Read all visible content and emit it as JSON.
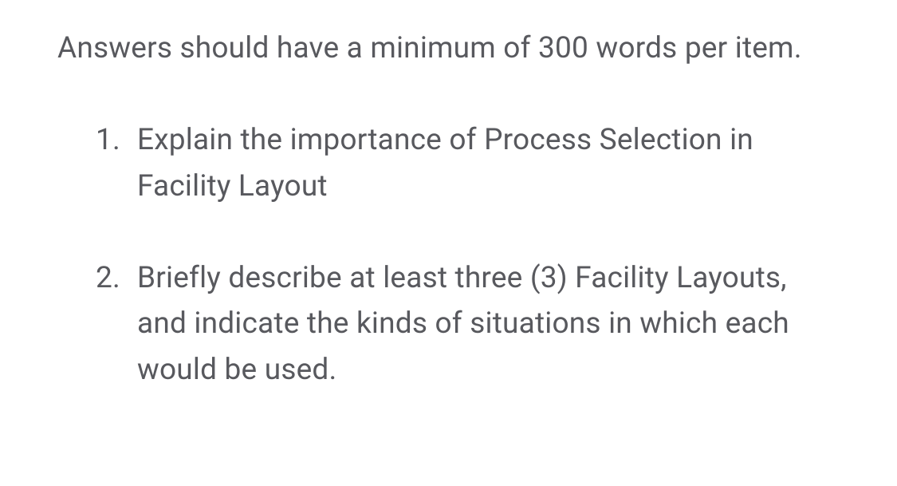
{
  "document": {
    "intro": "Answers should have a minimum of 300 words per item.",
    "items": [
      {
        "number": "1.",
        "text": "Explain the importance of Process Selection in Facility Layout"
      },
      {
        "number": "2.",
        "text": "Briefly describe at least three (3) Facility Layouts, and indicate the kinds of situations in which each would be used."
      }
    ],
    "text_color": "#58595e",
    "background_color": "#ffffff",
    "font_size": 37,
    "line_height": 1.55
  }
}
